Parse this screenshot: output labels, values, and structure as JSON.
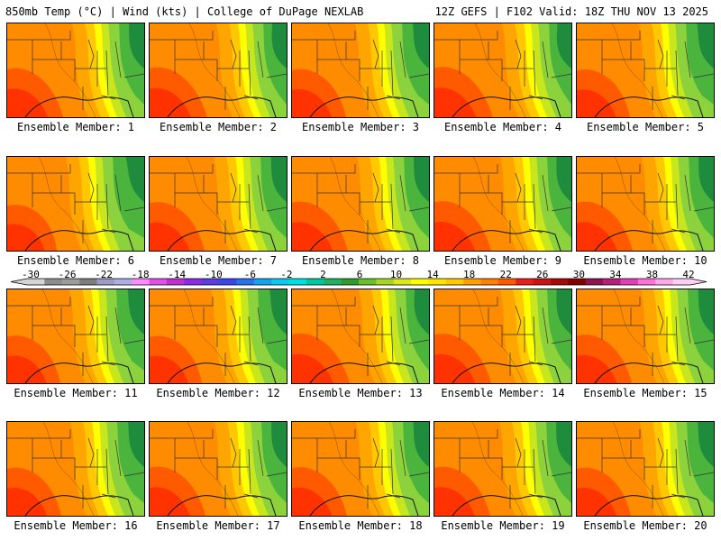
{
  "header": {
    "left": "850mb Temp (°C) | Wind (kts) | College of DuPage NEXLAB",
    "right": "12Z GEFS | F102 Valid: 18Z THU NOV 13 2025"
  },
  "member_label_prefix": "Ensemble Member: ",
  "members": [
    {
      "id": "1",
      "label": "Ensemble Member: 1",
      "warm": 0.55
    },
    {
      "id": "2",
      "label": "Ensemble Member: 2",
      "warm": 0.62
    },
    {
      "id": "3",
      "label": "Ensemble Member: 3",
      "warm": 0.5
    },
    {
      "id": "4",
      "label": "Ensemble Member: 4",
      "warm": 0.68
    },
    {
      "id": "5",
      "label": "Ensemble Member: 5",
      "warm": 0.48
    },
    {
      "id": "6",
      "label": "Ensemble Member: 6",
      "warm": 0.35
    },
    {
      "id": "7",
      "label": "Ensemble Member: 7",
      "warm": 0.52
    },
    {
      "id": "8",
      "label": "Ensemble Member: 8",
      "warm": 0.58
    },
    {
      "id": "9",
      "label": "Ensemble Member: 9",
      "warm": 0.6
    },
    {
      "id": "10",
      "label": "Ensemble Member: 10",
      "warm": 0.56
    },
    {
      "id": "11",
      "label": "Ensemble Member: 11",
      "warm": 0.46
    },
    {
      "id": "12",
      "label": "Ensemble Member: 12",
      "warm": 0.44
    },
    {
      "id": "13",
      "label": "Ensemble Member: 13",
      "warm": 0.64
    },
    {
      "id": "14",
      "label": "Ensemble Member: 14",
      "warm": 0.6
    },
    {
      "id": "15",
      "label": "Ensemble Member: 15",
      "warm": 0.52
    },
    {
      "id": "16",
      "label": "Ensemble Member: 16",
      "warm": 0.5
    },
    {
      "id": "17",
      "label": "Ensemble Member: 17",
      "warm": 0.58
    },
    {
      "id": "18",
      "label": "Ensemble Member: 18",
      "warm": 0.54
    },
    {
      "id": "19",
      "label": "Ensemble Member: 19",
      "warm": 0.57
    },
    {
      "id": "20",
      "label": "Ensemble Member: 20",
      "warm": 0.5
    }
  ],
  "colorbar": {
    "ticks": [
      "-30",
      "-26",
      "-22",
      "-18",
      "-14",
      "-10",
      "-6",
      "-2",
      "2",
      "6",
      "10",
      "14",
      "18",
      "22",
      "26",
      "30",
      "34",
      "38",
      "42"
    ],
    "colors": [
      "#d4d4d4",
      "#8c8c8c",
      "#9c9c9c",
      "#7e7e7e",
      "#9b9bc4",
      "#aeaee4",
      "#ff8cff",
      "#e050e8",
      "#c030d0",
      "#8a2be2",
      "#5a3ce0",
      "#3c46e6",
      "#2a70e8",
      "#1aa0f0",
      "#0ac8f0",
      "#00e0e0",
      "#00c8a0",
      "#20b060",
      "#2e9b2e",
      "#6cbf2c",
      "#a8d428",
      "#dbe81e",
      "#ffff00",
      "#ffe600",
      "#ffc800",
      "#ffa000",
      "#ff8000",
      "#ff5a00",
      "#e61e1e",
      "#c81414",
      "#a50a0a",
      "#820000",
      "#8c1450",
      "#b4207a",
      "#e040b4",
      "#ff70d8",
      "#ffa8ec",
      "#ffd0f4"
    ]
  },
  "palette": {
    "red": "#ff3200",
    "orange_red": "#ff5a00",
    "orange": "#ff8c00",
    "light_orange": "#ffa500",
    "amber": "#ffc800",
    "yellow": "#ffff00",
    "yellow_green": "#c8e61e",
    "light_green": "#8cd23c",
    "green": "#4bb43c",
    "dark_green": "#1e8c3c",
    "teal": "#20c8a0"
  }
}
